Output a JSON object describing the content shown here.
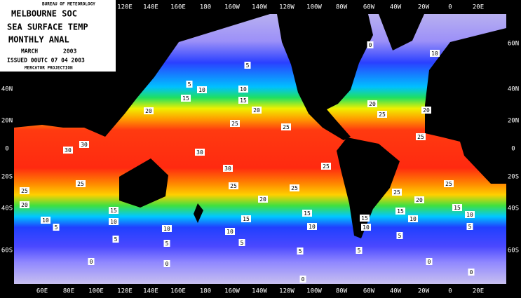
{
  "header": {
    "agency": "BUREAU OF METEOROLOGY",
    "centre": "MELBOURNE SOC",
    "product": "SEA SURFACE TEMP",
    "period": "MONTHLY ANAL",
    "month": "MARCH",
    "year": "2003",
    "issued": "ISSUED 00UTC 07 04 2003",
    "projection": "MERCATOR PROJECTION"
  },
  "top_longitudes": [
    "120E",
    "140E",
    "160E",
    "180",
    "160W",
    "140W",
    "120W",
    "100W",
    "80W",
    "60W",
    "40W",
    "20W",
    "0",
    "20E"
  ],
  "bottom_longitudes": [
    "60E",
    "80E",
    "100E",
    "120E",
    "140E",
    "160E",
    "180",
    "160W",
    "140W",
    "120W",
    "100W",
    "80W",
    "60W",
    "40W",
    "20W",
    "0",
    "20E"
  ],
  "left_latitudes": [
    "40N",
    "20N",
    "0",
    "20S",
    "40S",
    "60S"
  ],
  "right_latitudes": [
    "60N",
    "40N",
    "20N",
    "0",
    "20S",
    "40S",
    "60S"
  ],
  "contour_labels": [
    5,
    5,
    10,
    10,
    15,
    15,
    20,
    20,
    25,
    25,
    30,
    30,
    30,
    30,
    25,
    25,
    25,
    25,
    25,
    20,
    20,
    15,
    15,
    15,
    10,
    10,
    10,
    10,
    10,
    5,
    5,
    5,
    5,
    5,
    5,
    0,
    0,
    0,
    0,
    0,
    0,
    10,
    20,
    25,
    20,
    25,
    25,
    25,
    20,
    15,
    15,
    10,
    10,
    15,
    10,
    5,
    5
  ]
}
